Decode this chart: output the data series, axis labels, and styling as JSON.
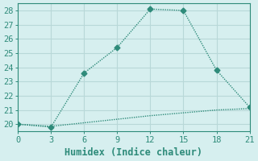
{
  "xlabel": "Humidex (Indice chaleur)",
  "line1_x": [
    0,
    3,
    6,
    9,
    12,
    15,
    18,
    21
  ],
  "line1_y": [
    20.0,
    19.8,
    23.6,
    25.4,
    28.1,
    28.0,
    23.8,
    21.2
  ],
  "line2_x": [
    0,
    3,
    6,
    9,
    12,
    15,
    18,
    21
  ],
  "line2_y": [
    20.0,
    19.85,
    20.1,
    20.35,
    20.6,
    20.8,
    21.0,
    21.1
  ],
  "line_color": "#2e8b7a",
  "bg_color": "#d6efef",
  "grid_color": "#b8d8d8",
  "xlim": [
    0,
    21
  ],
  "ylim": [
    19.5,
    28.5
  ],
  "xticks": [
    0,
    3,
    6,
    9,
    12,
    15,
    18,
    21
  ],
  "yticks": [
    20,
    21,
    22,
    23,
    24,
    25,
    26,
    27,
    28
  ],
  "markersize": 3.5,
  "linewidth": 1.0,
  "tick_fontsize": 7.5,
  "xlabel_fontsize": 8.5
}
